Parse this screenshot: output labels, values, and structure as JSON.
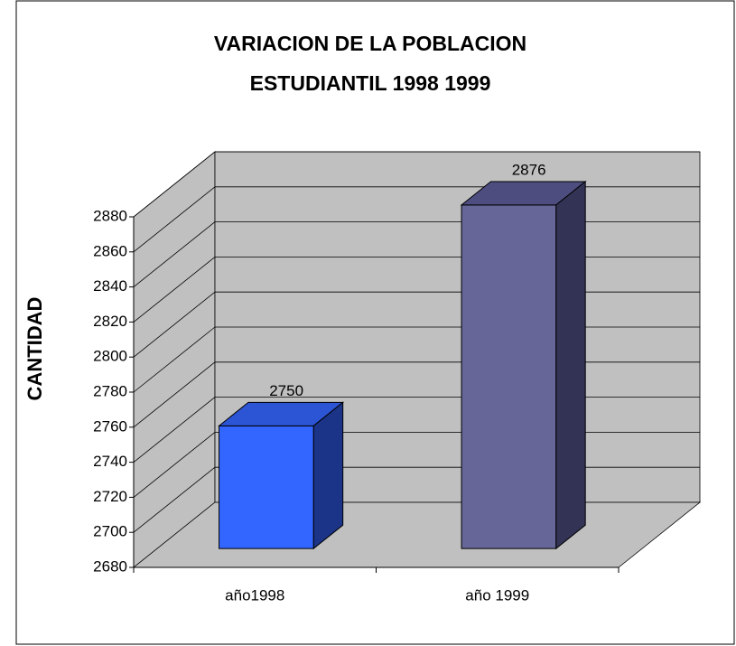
{
  "chart_data": {
    "type": "bar3d",
    "title": [
      "VARIACION DE LA POBLACION",
      "ESTUDIANTIL 1998 1999"
    ],
    "y_label": "CANTIDAD",
    "categories": [
      "año1998",
      "año 1999"
    ],
    "values": [
      2750,
      2876
    ],
    "colors": [
      {
        "front": "#3366ff",
        "top": "#2c55d6",
        "side": "#1c3488"
      },
      {
        "front": "#666699",
        "top": "#4d4d80",
        "side": "#333355"
      }
    ],
    "ylim": [
      2680,
      2880
    ],
    "yticks": [
      2680,
      2700,
      2720,
      2740,
      2760,
      2780,
      2800,
      2820,
      2840,
      2860,
      2880
    ],
    "grid": true
  }
}
